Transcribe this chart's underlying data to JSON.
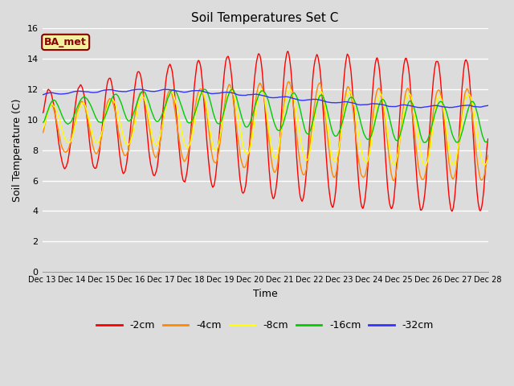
{
  "title": "Soil Temperatures Set C",
  "xlabel": "Time",
  "ylabel": "Soil Temperature (C)",
  "ylim": [
    0,
    16
  ],
  "yticks": [
    0,
    2,
    4,
    6,
    8,
    10,
    12,
    14,
    16
  ],
  "background_color": "#dcdcdc",
  "annotation_text": "BA_met",
  "annotation_color": "#8B0000",
  "annotation_bg": "#f5f0a0",
  "series_colors": {
    "-2cm": "#ff0000",
    "-4cm": "#ff8800",
    "-8cm": "#ffff00",
    "-16cm": "#00cc00",
    "-32cm": "#3333ff"
  },
  "x_ticks": [
    0,
    1,
    2,
    3,
    4,
    5,
    6,
    7,
    8,
    9,
    10,
    11,
    12,
    13,
    14,
    15
  ],
  "x_tick_labels": [
    "Dec 13",
    "Dec 14",
    "Dec 15",
    "Dec 16",
    "Dec 17",
    "Dec 18",
    "Dec 19",
    "Dec 20",
    "Dec 21",
    "Dec 22",
    "Dec 23",
    "Dec 24",
    "Dec 25",
    "Dec 26",
    "Dec 27",
    "Dec 28"
  ],
  "num_points": 720,
  "days": 15
}
